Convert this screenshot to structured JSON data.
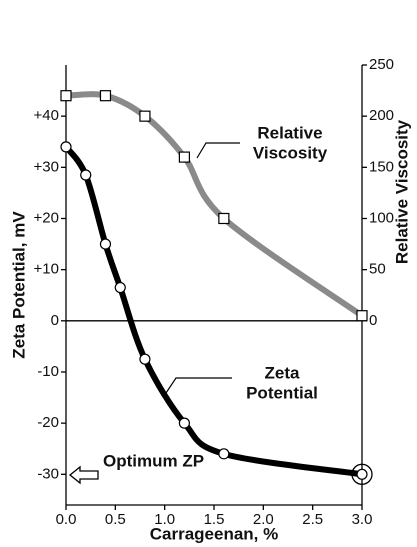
{
  "chart_data": {
    "type": "line",
    "x_label": "Carrageenan, %",
    "y_label": "Zeta Potential, mV",
    "y2_label": "Relative Viscosity",
    "xlim": [
      0,
      3
    ],
    "ylim": [
      -36,
      50
    ],
    "y2lim": [
      -180,
      250
    ],
    "xticks": [
      {
        "value": 0,
        "label": "0.0"
      },
      {
        "value": 0.5,
        "label": "0.5"
      },
      {
        "value": 1,
        "label": "1.0"
      },
      {
        "value": 1.5,
        "label": "1.5"
      },
      {
        "value": 2,
        "label": "2.0"
      },
      {
        "value": 2.5,
        "label": "2.5"
      },
      {
        "value": 3,
        "label": "3.0"
      }
    ],
    "yticks": [
      {
        "value": 40,
        "label": "+40"
      },
      {
        "value": 30,
        "label": "+30"
      },
      {
        "value": 20,
        "label": "+20"
      },
      {
        "value": 10,
        "label": "+10"
      },
      0,
      -10,
      -20,
      -30
    ],
    "y2ticks": [
      0,
      50,
      100,
      150,
      200,
      250
    ],
    "series": [
      {
        "name": "Zeta Potential",
        "color": "#000000",
        "marker": "circle",
        "axis": "y",
        "x": [
          0,
          0.2,
          0.4,
          0.55,
          0.8,
          1.2,
          1.6,
          3.0
        ],
        "values": [
          34,
          28.5,
          15,
          6.5,
          -7.5,
          -20,
          -26,
          -30
        ]
      },
      {
        "name": "Relative Viscosity",
        "color": "#8a8a8a",
        "marker": "square",
        "axis": "y2",
        "x": [
          0,
          0.4,
          0.8,
          1.2,
          1.6,
          3.0
        ],
        "values": [
          220,
          220,
          200,
          160,
          100,
          5
        ]
      }
    ],
    "annotations": [
      [
        "Relative",
        "Viscosity"
      ],
      [
        "Zeta",
        "Potential"
      ],
      [
        "Optimum ZP"
      ]
    ]
  }
}
